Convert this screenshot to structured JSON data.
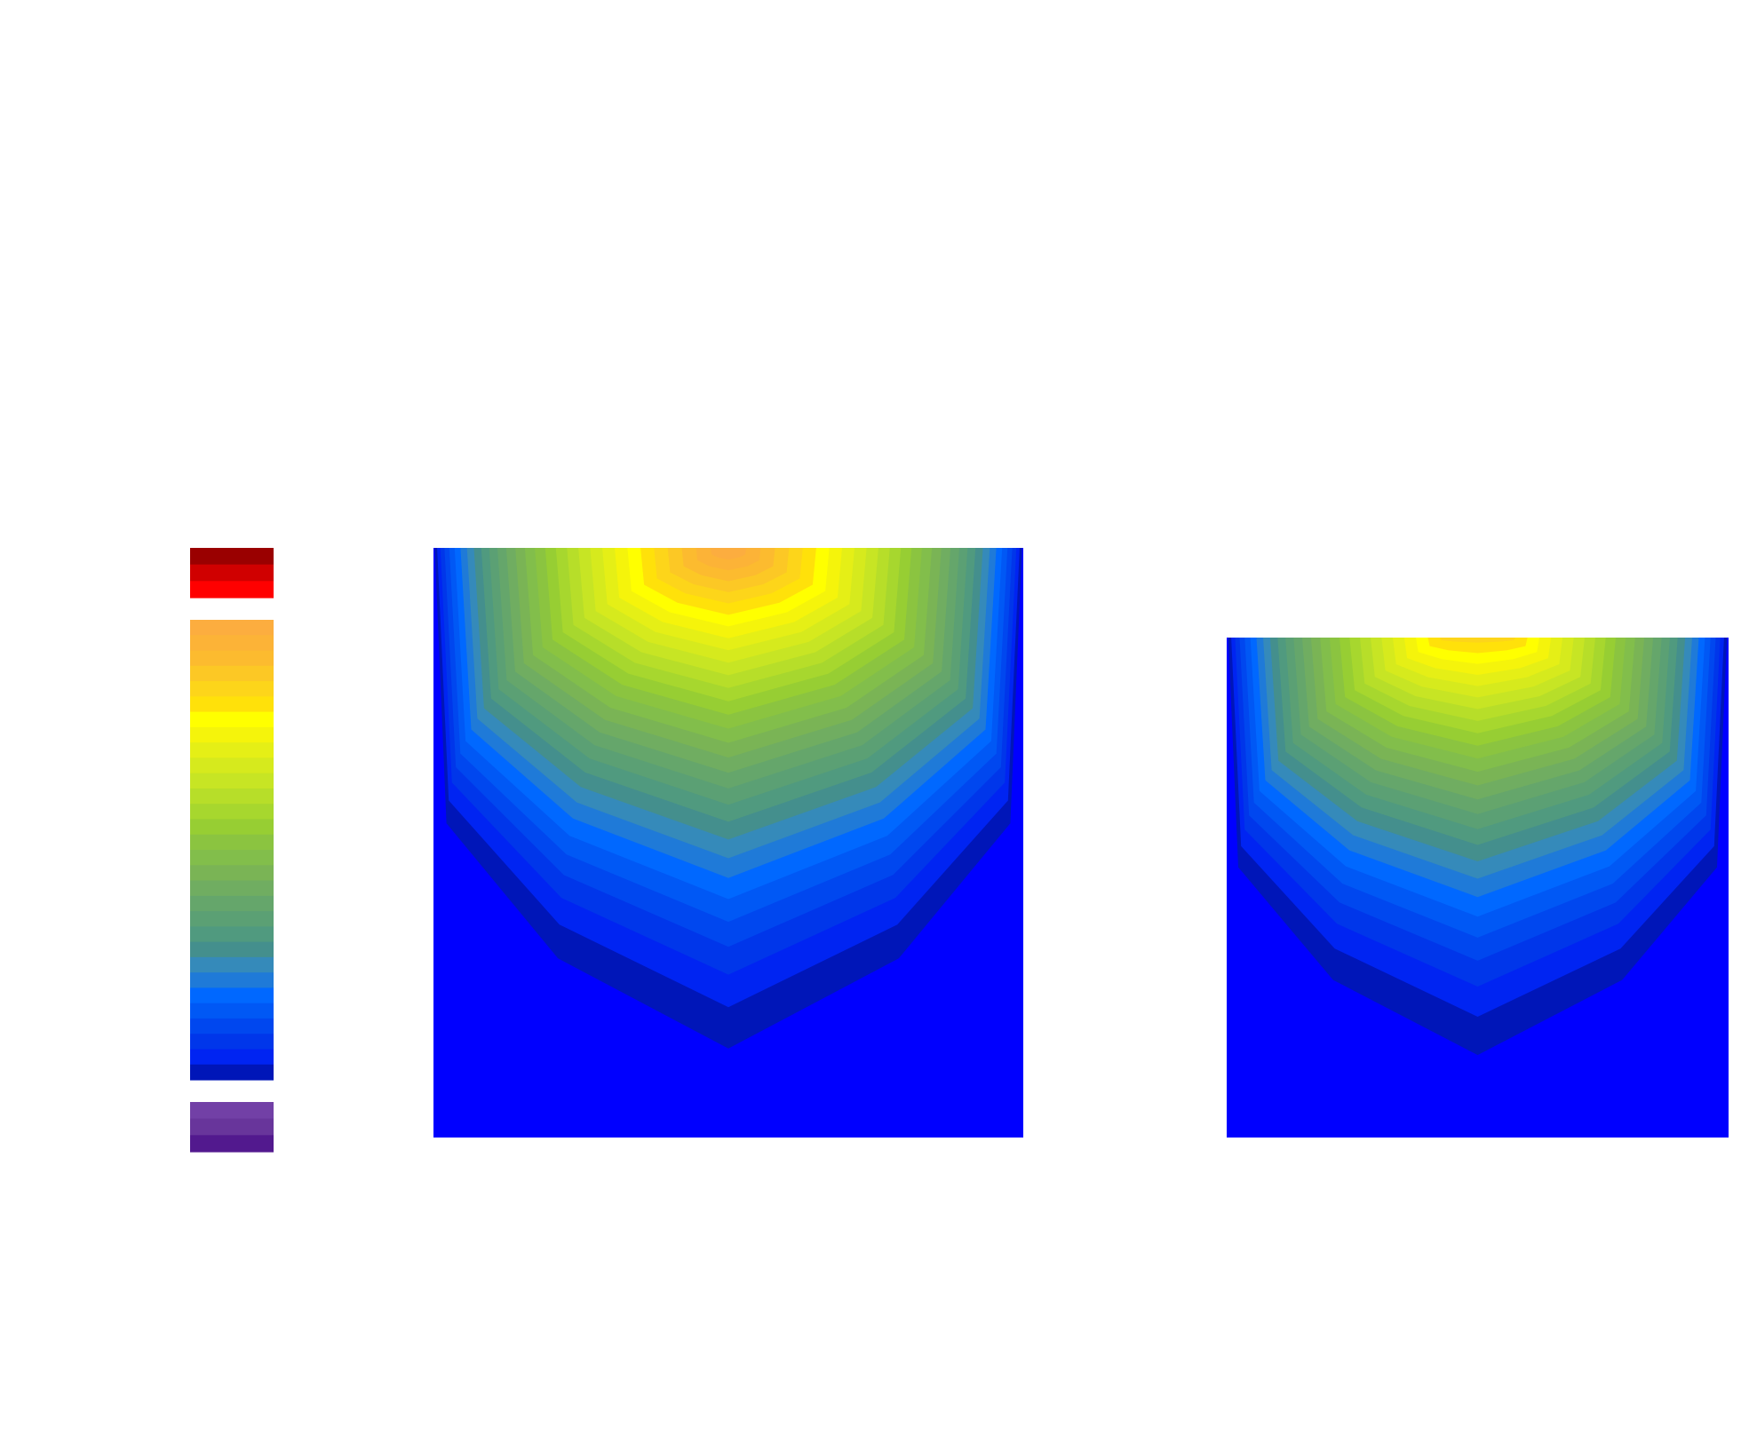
{
  "chart_data": [
    {
      "type": "colorbar",
      "levels": 30,
      "groups": [
        {
          "name": "upper",
          "levels": 3,
          "colors": [
            "#9a0000",
            "#d00000",
            "#ff0000"
          ]
        },
        {
          "name": "main",
          "levels": 30,
          "colors": [
            "#fcad3f",
            "#fcb337",
            "#fcbb2f",
            "#fcc825",
            "#fdd51a",
            "#ffe10a",
            "#ffff00",
            "#f5f40b",
            "#e5ef16",
            "#d6ea1d",
            "#c7e524",
            "#b7de29",
            "#a7d72e",
            "#97ce33",
            "#8bc440",
            "#82be4b",
            "#7ab455",
            "#70ad61",
            "#65a66b",
            "#5ba074",
            "#509a7f",
            "#448f8d",
            "#358aba",
            "#1f7ad8",
            "#0068ff",
            "#0058f5",
            "#0047ef",
            "#0036ea",
            "#0024f2",
            "#0016b8"
          ]
        },
        {
          "name": "lower",
          "levels": 3,
          "colors": [
            "#7240a6",
            "#68359b",
            "#52198e"
          ]
        }
      ]
    },
    {
      "type": "heatmap",
      "style": "filled-contour",
      "panel": "left",
      "levels": 30,
      "peak_level": 30,
      "peak_location": "top-center",
      "background_color": "#0000ff"
    },
    {
      "type": "heatmap",
      "style": "filled-contour",
      "panel": "right",
      "levels": 30,
      "peak_level": 26,
      "peak_location": "top-center",
      "background_color": "#0000ff"
    }
  ]
}
